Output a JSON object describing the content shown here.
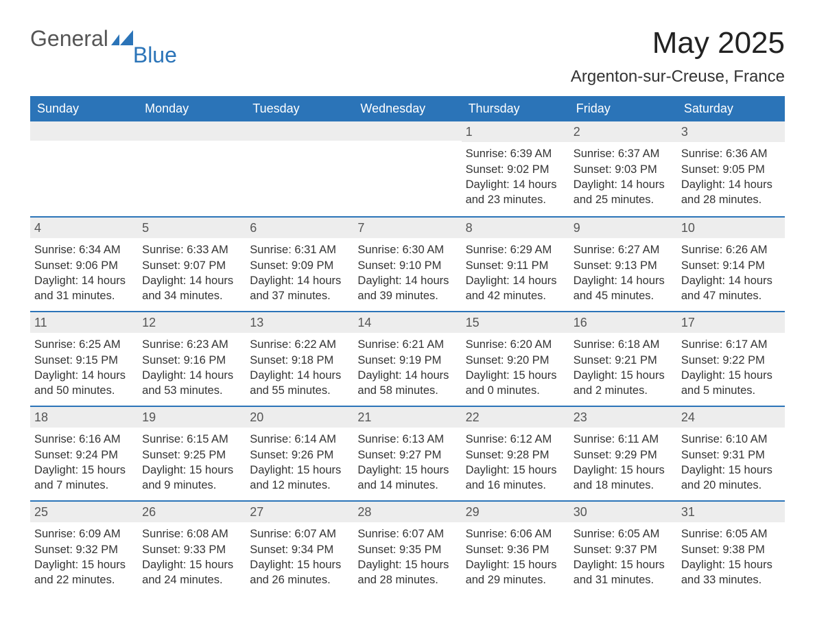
{
  "logo": {
    "text1": "General",
    "text2": "Blue",
    "flag_color": "#2b74b8"
  },
  "title": "May 2025",
  "location": "Argenton-sur-Creuse, France",
  "colors": {
    "header_bg": "#2b74b8",
    "header_text": "#ffffff",
    "row_divider": "#2b74b8",
    "daynum_bg": "#ededed",
    "daynum_text": "#555555",
    "body_text": "#333333",
    "background": "#ffffff"
  },
  "typography": {
    "title_fontsize": 44,
    "location_fontsize": 24,
    "weekday_fontsize": 18,
    "daynum_fontsize": 18,
    "body_fontsize": 16.5,
    "font_family": "Arial"
  },
  "weekdays": [
    "Sunday",
    "Monday",
    "Tuesday",
    "Wednesday",
    "Thursday",
    "Friday",
    "Saturday"
  ],
  "weeks": [
    [
      null,
      null,
      null,
      null,
      {
        "n": "1",
        "sunrise": "6:39 AM",
        "sunset": "9:02 PM",
        "daylight": "14 hours and 23 minutes."
      },
      {
        "n": "2",
        "sunrise": "6:37 AM",
        "sunset": "9:03 PM",
        "daylight": "14 hours and 25 minutes."
      },
      {
        "n": "3",
        "sunrise": "6:36 AM",
        "sunset": "9:05 PM",
        "daylight": "14 hours and 28 minutes."
      }
    ],
    [
      {
        "n": "4",
        "sunrise": "6:34 AM",
        "sunset": "9:06 PM",
        "daylight": "14 hours and 31 minutes."
      },
      {
        "n": "5",
        "sunrise": "6:33 AM",
        "sunset": "9:07 PM",
        "daylight": "14 hours and 34 minutes."
      },
      {
        "n": "6",
        "sunrise": "6:31 AM",
        "sunset": "9:09 PM",
        "daylight": "14 hours and 37 minutes."
      },
      {
        "n": "7",
        "sunrise": "6:30 AM",
        "sunset": "9:10 PM",
        "daylight": "14 hours and 39 minutes."
      },
      {
        "n": "8",
        "sunrise": "6:29 AM",
        "sunset": "9:11 PM",
        "daylight": "14 hours and 42 minutes."
      },
      {
        "n": "9",
        "sunrise": "6:27 AM",
        "sunset": "9:13 PM",
        "daylight": "14 hours and 45 minutes."
      },
      {
        "n": "10",
        "sunrise": "6:26 AM",
        "sunset": "9:14 PM",
        "daylight": "14 hours and 47 minutes."
      }
    ],
    [
      {
        "n": "11",
        "sunrise": "6:25 AM",
        "sunset": "9:15 PM",
        "daylight": "14 hours and 50 minutes."
      },
      {
        "n": "12",
        "sunrise": "6:23 AM",
        "sunset": "9:16 PM",
        "daylight": "14 hours and 53 minutes."
      },
      {
        "n": "13",
        "sunrise": "6:22 AM",
        "sunset": "9:18 PM",
        "daylight": "14 hours and 55 minutes."
      },
      {
        "n": "14",
        "sunrise": "6:21 AM",
        "sunset": "9:19 PM",
        "daylight": "14 hours and 58 minutes."
      },
      {
        "n": "15",
        "sunrise": "6:20 AM",
        "sunset": "9:20 PM",
        "daylight": "15 hours and 0 minutes."
      },
      {
        "n": "16",
        "sunrise": "6:18 AM",
        "sunset": "9:21 PM",
        "daylight": "15 hours and 2 minutes."
      },
      {
        "n": "17",
        "sunrise": "6:17 AM",
        "sunset": "9:22 PM",
        "daylight": "15 hours and 5 minutes."
      }
    ],
    [
      {
        "n": "18",
        "sunrise": "6:16 AM",
        "sunset": "9:24 PM",
        "daylight": "15 hours and 7 minutes."
      },
      {
        "n": "19",
        "sunrise": "6:15 AM",
        "sunset": "9:25 PM",
        "daylight": "15 hours and 9 minutes."
      },
      {
        "n": "20",
        "sunrise": "6:14 AM",
        "sunset": "9:26 PM",
        "daylight": "15 hours and 12 minutes."
      },
      {
        "n": "21",
        "sunrise": "6:13 AM",
        "sunset": "9:27 PM",
        "daylight": "15 hours and 14 minutes."
      },
      {
        "n": "22",
        "sunrise": "6:12 AM",
        "sunset": "9:28 PM",
        "daylight": "15 hours and 16 minutes."
      },
      {
        "n": "23",
        "sunrise": "6:11 AM",
        "sunset": "9:29 PM",
        "daylight": "15 hours and 18 minutes."
      },
      {
        "n": "24",
        "sunrise": "6:10 AM",
        "sunset": "9:31 PM",
        "daylight": "15 hours and 20 minutes."
      }
    ],
    [
      {
        "n": "25",
        "sunrise": "6:09 AM",
        "sunset": "9:32 PM",
        "daylight": "15 hours and 22 minutes."
      },
      {
        "n": "26",
        "sunrise": "6:08 AM",
        "sunset": "9:33 PM",
        "daylight": "15 hours and 24 minutes."
      },
      {
        "n": "27",
        "sunrise": "6:07 AM",
        "sunset": "9:34 PM",
        "daylight": "15 hours and 26 minutes."
      },
      {
        "n": "28",
        "sunrise": "6:07 AM",
        "sunset": "9:35 PM",
        "daylight": "15 hours and 28 minutes."
      },
      {
        "n": "29",
        "sunrise": "6:06 AM",
        "sunset": "9:36 PM",
        "daylight": "15 hours and 29 minutes."
      },
      {
        "n": "30",
        "sunrise": "6:05 AM",
        "sunset": "9:37 PM",
        "daylight": "15 hours and 31 minutes."
      },
      {
        "n": "31",
        "sunrise": "6:05 AM",
        "sunset": "9:38 PM",
        "daylight": "15 hours and 33 minutes."
      }
    ]
  ],
  "labels": {
    "sunrise": "Sunrise: ",
    "sunset": "Sunset: ",
    "daylight": "Daylight: "
  }
}
